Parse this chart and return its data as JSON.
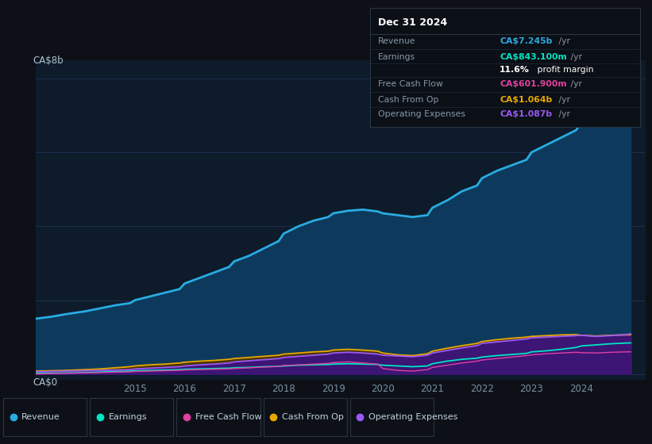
{
  "bg_color": "#0d1117",
  "plot_bg_color": "#0d1b2a",
  "grid_color": "#1e3050",
  "years": [
    2013.0,
    2013.3,
    2013.6,
    2014.0,
    2014.3,
    2014.6,
    2014.9,
    2015.0,
    2015.3,
    2015.6,
    2015.9,
    2016.0,
    2016.3,
    2016.6,
    2016.9,
    2017.0,
    2017.3,
    2017.6,
    2017.9,
    2018.0,
    2018.3,
    2018.6,
    2018.9,
    2019.0,
    2019.3,
    2019.6,
    2019.9,
    2020.0,
    2020.3,
    2020.6,
    2020.9,
    2021.0,
    2021.3,
    2021.6,
    2021.9,
    2022.0,
    2022.3,
    2022.6,
    2022.9,
    2023.0,
    2023.3,
    2023.6,
    2023.9,
    2024.0,
    2024.3,
    2024.6,
    2024.9,
    2025.0
  ],
  "revenue": [
    1.5,
    1.55,
    1.62,
    1.7,
    1.78,
    1.86,
    1.92,
    2.0,
    2.1,
    2.2,
    2.3,
    2.45,
    2.6,
    2.75,
    2.9,
    3.05,
    3.2,
    3.4,
    3.6,
    3.8,
    4.0,
    4.15,
    4.25,
    4.35,
    4.42,
    4.45,
    4.4,
    4.35,
    4.3,
    4.25,
    4.3,
    4.5,
    4.7,
    4.95,
    5.1,
    5.3,
    5.5,
    5.65,
    5.8,
    6.0,
    6.2,
    6.4,
    6.6,
    6.8,
    6.95,
    7.1,
    7.2,
    7.245
  ],
  "earnings": [
    0.02,
    0.025,
    0.03,
    0.04,
    0.055,
    0.07,
    0.08,
    0.09,
    0.1,
    0.11,
    0.12,
    0.13,
    0.14,
    0.15,
    0.16,
    0.17,
    0.18,
    0.2,
    0.21,
    0.22,
    0.24,
    0.25,
    0.26,
    0.27,
    0.28,
    0.27,
    0.26,
    0.24,
    0.22,
    0.2,
    0.22,
    0.28,
    0.35,
    0.4,
    0.43,
    0.46,
    0.5,
    0.53,
    0.56,
    0.6,
    0.63,
    0.67,
    0.72,
    0.76,
    0.79,
    0.82,
    0.84,
    0.843
  ],
  "free_cash_flow": [
    0.0,
    0.01,
    0.02,
    0.03,
    0.04,
    0.05,
    0.06,
    0.07,
    0.08,
    0.09,
    0.1,
    0.11,
    0.12,
    0.13,
    0.14,
    0.15,
    0.17,
    0.19,
    0.21,
    0.23,
    0.25,
    0.27,
    0.29,
    0.31,
    0.33,
    0.3,
    0.27,
    0.15,
    0.1,
    0.08,
    0.12,
    0.18,
    0.24,
    0.3,
    0.35,
    0.38,
    0.42,
    0.46,
    0.5,
    0.52,
    0.55,
    0.57,
    0.59,
    0.58,
    0.57,
    0.59,
    0.6,
    0.6019
  ],
  "cash_from_op": [
    0.08,
    0.09,
    0.1,
    0.12,
    0.14,
    0.17,
    0.2,
    0.22,
    0.25,
    0.27,
    0.3,
    0.32,
    0.35,
    0.37,
    0.4,
    0.42,
    0.45,
    0.48,
    0.51,
    0.54,
    0.57,
    0.6,
    0.62,
    0.65,
    0.67,
    0.65,
    0.62,
    0.57,
    0.52,
    0.5,
    0.55,
    0.62,
    0.7,
    0.77,
    0.83,
    0.88,
    0.93,
    0.97,
    1.0,
    1.02,
    1.04,
    1.06,
    1.07,
    1.05,
    1.03,
    1.05,
    1.06,
    1.064
  ],
  "operating_expenses": [
    0.06,
    0.07,
    0.08,
    0.09,
    0.1,
    0.11,
    0.12,
    0.14,
    0.16,
    0.18,
    0.2,
    0.22,
    0.25,
    0.27,
    0.3,
    0.33,
    0.36,
    0.39,
    0.42,
    0.45,
    0.48,
    0.51,
    0.54,
    0.57,
    0.59,
    0.57,
    0.54,
    0.51,
    0.49,
    0.47,
    0.51,
    0.57,
    0.64,
    0.71,
    0.77,
    0.83,
    0.87,
    0.91,
    0.95,
    0.98,
    1.0,
    1.02,
    1.04,
    1.05,
    1.02,
    1.04,
    1.07,
    1.087
  ],
  "revenue_color": "#29abe2",
  "revenue_fill": "#0d3a5c",
  "earnings_color": "#00e5c3",
  "earnings_fill": "#003d35",
  "free_cash_flow_color": "#e040a0",
  "free_cash_flow_fill": "#5a1040",
  "cash_from_op_color": "#e8a800",
  "cash_from_op_fill": "#4a3500",
  "operating_expenses_color": "#9b59f5",
  "operating_expenses_fill": "#3d1575",
  "ylim": [
    -0.15,
    8.5
  ],
  "xlim": [
    2013.0,
    2025.3
  ],
  "xticks": [
    2015,
    2016,
    2017,
    2018,
    2019,
    2020,
    2021,
    2022,
    2023,
    2024
  ],
  "ylabel_top": "CA$8b",
  "ylabel_zero": "CA$0",
  "yline_0": 0.0,
  "yline_2": 2.0,
  "yline_4": 4.0,
  "yline_6": 6.0,
  "yline_8": 8.0,
  "info_box": {
    "title": "Dec 31 2024",
    "rows": [
      {
        "label": "Revenue",
        "value": "CA$7.245b",
        "value_color": "#29abe2"
      },
      {
        "label": "Earnings",
        "value": "CA$843.100m",
        "value_color": "#00e5c3"
      },
      {
        "label": "",
        "value": "11.6% profit margin",
        "value_color": "#ffffff"
      },
      {
        "label": "Free Cash Flow",
        "value": "CA$601.900m",
        "value_color": "#e040a0"
      },
      {
        "label": "Cash From Op",
        "value": "CA$1.064b",
        "value_color": "#e8a800"
      },
      {
        "label": "Operating Expenses",
        "value": "CA$1.087b",
        "value_color": "#9b59f5"
      }
    ]
  },
  "legend": [
    {
      "label": "Revenue",
      "color": "#29abe2"
    },
    {
      "label": "Earnings",
      "color": "#00e5c3"
    },
    {
      "label": "Free Cash Flow",
      "color": "#e040a0"
    },
    {
      "label": "Cash From Op",
      "color": "#e8a800"
    },
    {
      "label": "Operating Expenses",
      "color": "#9b59f5"
    }
  ]
}
